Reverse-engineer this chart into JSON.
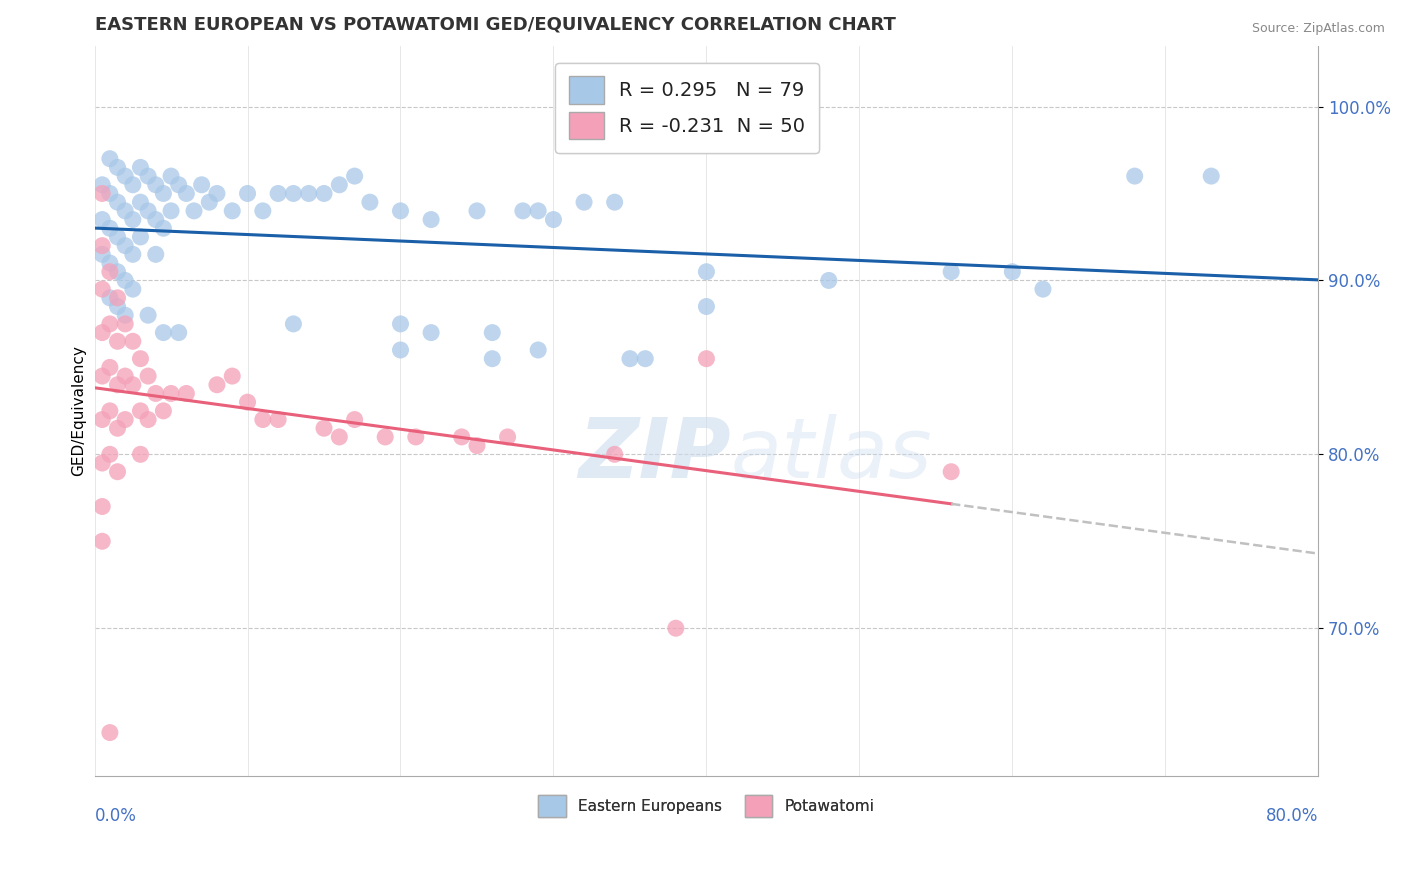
{
  "title": "EASTERN EUROPEAN VS POTAWATOMI GED/EQUIVALENCY CORRELATION CHART",
  "source": "Source: ZipAtlas.com",
  "ylabel": "GED/Equivalency",
  "ytick_vals": [
    0.7,
    0.8,
    0.9,
    1.0
  ],
  "xmin": 0.0,
  "xmax": 0.8,
  "ymin": 0.615,
  "ymax": 1.035,
  "watermark_zip": "ZIP",
  "watermark_atlas": "atlas",
  "blue_color": "#a8c8e8",
  "pink_color": "#f4a0b8",
  "line_blue": "#1a5fa8",
  "line_pink": "#e8607a",
  "line_dashed": "#c0c0c0",
  "blue_scatter": [
    [
      0.005,
      0.955
    ],
    [
      0.005,
      0.935
    ],
    [
      0.005,
      0.915
    ],
    [
      0.01,
      0.97
    ],
    [
      0.01,
      0.95
    ],
    [
      0.01,
      0.93
    ],
    [
      0.01,
      0.91
    ],
    [
      0.01,
      0.89
    ],
    [
      0.015,
      0.965
    ],
    [
      0.015,
      0.945
    ],
    [
      0.015,
      0.925
    ],
    [
      0.015,
      0.905
    ],
    [
      0.015,
      0.885
    ],
    [
      0.02,
      0.96
    ],
    [
      0.02,
      0.94
    ],
    [
      0.02,
      0.92
    ],
    [
      0.02,
      0.9
    ],
    [
      0.02,
      0.88
    ],
    [
      0.025,
      0.955
    ],
    [
      0.025,
      0.935
    ],
    [
      0.025,
      0.915
    ],
    [
      0.025,
      0.895
    ],
    [
      0.03,
      0.965
    ],
    [
      0.03,
      0.945
    ],
    [
      0.03,
      0.925
    ],
    [
      0.035,
      0.96
    ],
    [
      0.035,
      0.94
    ],
    [
      0.04,
      0.955
    ],
    [
      0.04,
      0.935
    ],
    [
      0.04,
      0.915
    ],
    [
      0.045,
      0.95
    ],
    [
      0.045,
      0.93
    ],
    [
      0.05,
      0.96
    ],
    [
      0.05,
      0.94
    ],
    [
      0.055,
      0.955
    ],
    [
      0.06,
      0.95
    ],
    [
      0.065,
      0.94
    ],
    [
      0.07,
      0.955
    ],
    [
      0.075,
      0.945
    ],
    [
      0.08,
      0.95
    ],
    [
      0.09,
      0.94
    ],
    [
      0.1,
      0.95
    ],
    [
      0.11,
      0.94
    ],
    [
      0.12,
      0.95
    ],
    [
      0.13,
      0.95
    ],
    [
      0.14,
      0.95
    ],
    [
      0.15,
      0.95
    ],
    [
      0.16,
      0.955
    ],
    [
      0.17,
      0.96
    ],
    [
      0.18,
      0.945
    ],
    [
      0.2,
      0.94
    ],
    [
      0.22,
      0.935
    ],
    [
      0.25,
      0.94
    ],
    [
      0.28,
      0.94
    ],
    [
      0.29,
      0.94
    ],
    [
      0.3,
      0.935
    ],
    [
      0.32,
      0.945
    ],
    [
      0.34,
      0.945
    ],
    [
      0.035,
      0.88
    ],
    [
      0.045,
      0.87
    ],
    [
      0.055,
      0.87
    ],
    [
      0.13,
      0.875
    ],
    [
      0.2,
      0.875
    ],
    [
      0.2,
      0.86
    ],
    [
      0.22,
      0.87
    ],
    [
      0.26,
      0.87
    ],
    [
      0.26,
      0.855
    ],
    [
      0.29,
      0.86
    ],
    [
      0.35,
      0.855
    ],
    [
      0.36,
      0.855
    ],
    [
      0.4,
      0.905
    ],
    [
      0.4,
      0.885
    ],
    [
      0.48,
      0.9
    ],
    [
      0.56,
      0.905
    ],
    [
      0.6,
      0.905
    ],
    [
      0.62,
      0.895
    ],
    [
      0.68,
      0.96
    ],
    [
      0.73,
      0.96
    ]
  ],
  "pink_scatter": [
    [
      0.005,
      0.95
    ],
    [
      0.005,
      0.92
    ],
    [
      0.005,
      0.895
    ],
    [
      0.005,
      0.87
    ],
    [
      0.005,
      0.845
    ],
    [
      0.005,
      0.82
    ],
    [
      0.005,
      0.795
    ],
    [
      0.005,
      0.77
    ],
    [
      0.005,
      0.75
    ],
    [
      0.01,
      0.905
    ],
    [
      0.01,
      0.875
    ],
    [
      0.01,
      0.85
    ],
    [
      0.01,
      0.825
    ],
    [
      0.01,
      0.8
    ],
    [
      0.015,
      0.89
    ],
    [
      0.015,
      0.865
    ],
    [
      0.015,
      0.84
    ],
    [
      0.015,
      0.815
    ],
    [
      0.015,
      0.79
    ],
    [
      0.02,
      0.875
    ],
    [
      0.02,
      0.845
    ],
    [
      0.02,
      0.82
    ],
    [
      0.025,
      0.865
    ],
    [
      0.025,
      0.84
    ],
    [
      0.03,
      0.855
    ],
    [
      0.03,
      0.825
    ],
    [
      0.03,
      0.8
    ],
    [
      0.035,
      0.845
    ],
    [
      0.035,
      0.82
    ],
    [
      0.04,
      0.835
    ],
    [
      0.045,
      0.825
    ],
    [
      0.05,
      0.835
    ],
    [
      0.06,
      0.835
    ],
    [
      0.08,
      0.84
    ],
    [
      0.09,
      0.845
    ],
    [
      0.1,
      0.83
    ],
    [
      0.11,
      0.82
    ],
    [
      0.12,
      0.82
    ],
    [
      0.15,
      0.815
    ],
    [
      0.16,
      0.81
    ],
    [
      0.17,
      0.82
    ],
    [
      0.19,
      0.81
    ],
    [
      0.21,
      0.81
    ],
    [
      0.24,
      0.81
    ],
    [
      0.25,
      0.805
    ],
    [
      0.27,
      0.81
    ],
    [
      0.34,
      0.8
    ],
    [
      0.4,
      0.855
    ],
    [
      0.56,
      0.79
    ],
    [
      0.01,
      0.64
    ],
    [
      0.38,
      0.7
    ]
  ]
}
